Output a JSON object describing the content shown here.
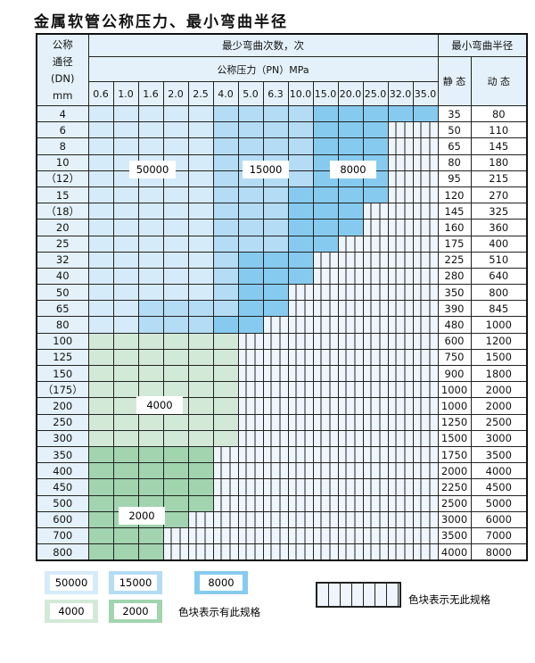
{
  "title": "金属软管公称压力、最小弯曲半径",
  "header": {
    "dn": [
      "公称",
      "通径",
      "(DN)",
      "mm"
    ],
    "cycles": "最少弯曲次数，次",
    "pressure": "公称压力（PN）MPa",
    "radius": "最小弯曲半径",
    "static": "静 态",
    "dynamic": "动 态",
    "pressures": [
      "0.6",
      "1.0",
      "1.6",
      "2.0",
      "2.5",
      "4.0",
      "5.0",
      "6.3",
      "10.0",
      "15.0",
      "20.0",
      "25.0",
      "32.0",
      "35.0"
    ]
  },
  "colors": {
    "hatch": "#eef5fc",
    "50000": "#d6ebf9",
    "15000": "#b4dcf5",
    "8000": "#86cbef",
    "4000": "#d3e9d7",
    "2000": "#a1d4af"
  },
  "rows": [
    {
      "dn": "4",
      "grades": "11111222233333",
      "static": "35",
      "dynamic": "80"
    },
    {
      "dn": "6",
      "grades": "111112222333",
      "static": "50",
      "dynamic": "110"
    },
    {
      "dn": "8",
      "grades": "111112222333",
      "static": "65",
      "dynamic": "145"
    },
    {
      "dn": "10",
      "grades": "111112222333",
      "static": "80",
      "dynamic": "180"
    },
    {
      "dn": "（12）",
      "grades": "111112222333",
      "static": "95",
      "dynamic": "215"
    },
    {
      "dn": "15",
      "grades": "111112223333",
      "static": "120",
      "dynamic": "270"
    },
    {
      "dn": "（18）",
      "grades": "11111222333",
      "static": "145",
      "dynamic": "325"
    },
    {
      "dn": "20",
      "grades": "11111222333",
      "static": "160",
      "dynamic": "360"
    },
    {
      "dn": "25",
      "grades": "1111122233",
      "static": "175",
      "dynamic": "400"
    },
    {
      "dn": "32",
      "grades": "111112333",
      "static": "225",
      "dynamic": "510"
    },
    {
      "dn": "40",
      "grades": "111112333",
      "static": "280",
      "dynamic": "640"
    },
    {
      "dn": "50",
      "grades": "11111233",
      "static": "350",
      "dynamic": "800"
    },
    {
      "dn": "65",
      "grades": "11222233",
      "static": "390",
      "dynamic": "845"
    },
    {
      "dn": "80",
      "grades": "1122233",
      "static": "480",
      "dynamic": "1000"
    },
    {
      "dn": "100",
      "grades": "444444",
      "static": "600",
      "dynamic": "1200"
    },
    {
      "dn": "125",
      "grades": "444444",
      "static": "750",
      "dynamic": "1500"
    },
    {
      "dn": "150",
      "grades": "444444",
      "static": "900",
      "dynamic": "1800"
    },
    {
      "dn": "（175）",
      "grades": "444444",
      "static": "1000",
      "dynamic": "2000"
    },
    {
      "dn": "200",
      "grades": "444444",
      "static": "1000",
      "dynamic": "2000"
    },
    {
      "dn": "250",
      "grades": "444444",
      "static": "1250",
      "dynamic": "2500"
    },
    {
      "dn": "300",
      "grades": "444444",
      "static": "1500",
      "dynamic": "3000"
    },
    {
      "dn": "350",
      "grades": "55555",
      "static": "1750",
      "dynamic": "3500"
    },
    {
      "dn": "400",
      "grades": "55555",
      "static": "2000",
      "dynamic": "4000"
    },
    {
      "dn": "450",
      "grades": "55555",
      "static": "2250",
      "dynamic": "4500"
    },
    {
      "dn": "500",
      "grades": "55555",
      "static": "2500",
      "dynamic": "5000"
    },
    {
      "dn": "600",
      "grades": "5555",
      "static": "3000",
      "dynamic": "6000"
    },
    {
      "dn": "700",
      "grades": "555",
      "static": "3500",
      "dynamic": "7000"
    },
    {
      "dn": "800",
      "grades": "555",
      "static": "4000",
      "dynamic": "8000"
    }
  ],
  "region_labels": [
    "50000",
    "15000",
    "8000",
    "4000",
    "2000"
  ],
  "legend": {
    "items": [
      "50000",
      "15000",
      "8000",
      "4000",
      "2000"
    ],
    "has_spec": "色块表示有此规格",
    "no_spec": "色块表示无此规格"
  }
}
